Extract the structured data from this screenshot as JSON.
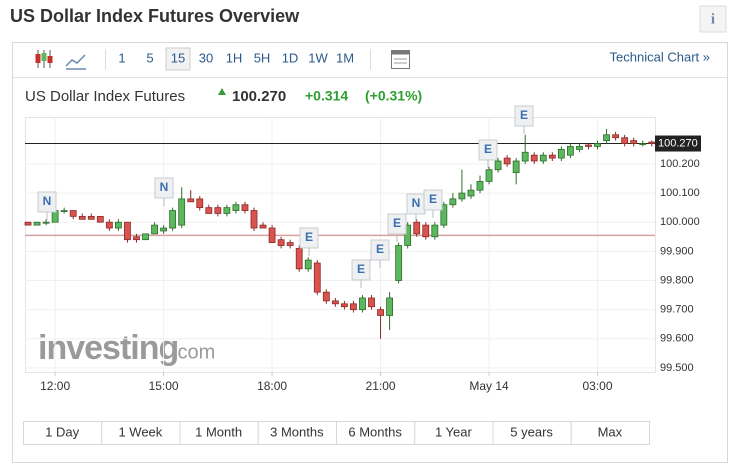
{
  "header": {
    "title": "US Dollar Index Futures Overview",
    "info": "i"
  },
  "toolbar": {
    "intervals": [
      "1",
      "5",
      "15",
      "30",
      "1H",
      "5H",
      "1D",
      "1W",
      "1M"
    ],
    "selected": "15",
    "link": "Technical Chart »"
  },
  "quote": {
    "name": "US Dollar Index Futures",
    "change": "+0.314",
    "change_percent": "(+0.31%)"
  },
  "watermark": {
    "brand": "investing",
    "suffix": ".com"
  },
  "ranges": [
    "1 Day",
    "1 Week",
    "1 Month",
    "3 Months",
    "6 Months",
    "1 Year",
    "5 years",
    "Max"
  ],
  "chart_data": {
    "type": "candlestick",
    "categories": [
      null,
      null,
      null,
      "12:00",
      null,
      null,
      null,
      null,
      null,
      null,
      null,
      null,
      null,
      null,
      null,
      "15:00",
      null,
      null,
      null,
      null,
      null,
      null,
      null,
      null,
      null,
      null,
      null,
      "18:00",
      null,
      null,
      null,
      null,
      null,
      null,
      null,
      null,
      null,
      null,
      null,
      "21:00",
      null,
      null,
      null,
      null,
      null,
      null,
      null,
      null,
      null,
      null,
      null,
      "May 14",
      null,
      null,
      null,
      null,
      null,
      null,
      null,
      null,
      null,
      null,
      null,
      "03:00",
      null,
      null,
      null,
      null,
      null,
      null
    ],
    "open": [
      100.0,
      99.99,
      100.0,
      100.0,
      100.04,
      100.04,
      100.02,
      100.02,
      100.02,
      100.0,
      99.98,
      100.0,
      99.95,
      99.94,
      99.96,
      99.97,
      99.98,
      99.99,
      100.08,
      100.08,
      100.05,
      100.05,
      100.03,
      100.04,
      100.06,
      100.04,
      99.99,
      99.98,
      99.94,
      99.93,
      99.91,
      99.84,
      99.86,
      99.76,
      99.73,
      99.72,
      99.72,
      99.7,
      99.74,
      99.7,
      99.68,
      99.8,
      99.92,
      100.0,
      99.99,
      99.95,
      99.99,
      100.06,
      100.08,
      100.09,
      100.11,
      100.14,
      100.18,
      100.22,
      100.17,
      100.21,
      100.23,
      100.21,
      100.23,
      100.22,
      100.23,
      100.25,
      100.265,
      100.26,
      100.28,
      100.3,
      100.29,
      100.28,
      100.27,
      100.275
    ],
    "high": [
      100.0,
      100.0,
      100.01,
      100.04,
      100.05,
      100.04,
      100.03,
      100.03,
      100.02,
      100.01,
      100.01,
      100.0,
      99.96,
      99.96,
      100.0,
      99.99,
      100.05,
      100.12,
      100.11,
      100.09,
      100.06,
      100.06,
      100.06,
      100.07,
      100.07,
      100.05,
      100.0,
      99.99,
      99.95,
      99.94,
      99.92,
      99.88,
      99.87,
      99.77,
      99.74,
      99.73,
      99.73,
      99.75,
      99.75,
      99.71,
      99.76,
      99.93,
      100.0,
      100.01,
      100.0,
      100.0,
      100.07,
      100.1,
      100.18,
      100.13,
      100.16,
      100.19,
      100.22,
      100.23,
      100.22,
      100.3,
      100.24,
      100.24,
      100.24,
      100.26,
      100.27,
      100.27,
      100.27,
      100.28,
      100.32,
      100.31,
      100.3,
      100.29,
      100.28,
      100.28
    ],
    "low": [
      99.99,
      99.99,
      99.99,
      100.0,
      100.03,
      100.01,
      100.01,
      100.01,
      100.0,
      99.97,
      99.97,
      99.93,
      99.93,
      99.94,
      99.96,
      99.96,
      99.97,
      99.98,
      100.07,
      100.04,
      100.03,
      100.02,
      100.02,
      100.03,
      100.03,
      99.97,
      99.98,
      99.93,
      99.91,
      99.91,
      99.83,
      99.83,
      99.75,
      99.72,
      99.71,
      99.7,
      99.69,
      99.69,
      99.7,
      99.6,
      99.63,
      99.79,
      99.91,
      99.95,
      99.94,
      99.94,
      99.98,
      100.05,
      100.07,
      100.08,
      100.1,
      100.13,
      100.17,
      100.19,
      100.13,
      100.2,
      100.2,
      100.2,
      100.21,
      100.21,
      100.22,
      100.24,
      100.25,
      100.25,
      100.27,
      100.28,
      100.26,
      100.26,
      100.26,
      100.26
    ],
    "close": [
      99.99,
      100.0,
      100.0,
      100.04,
      100.04,
      100.02,
      100.01,
      100.01,
      100.0,
      99.98,
      100.0,
      99.94,
      99.94,
      99.96,
      99.99,
      99.98,
      100.04,
      100.08,
      100.07,
      100.05,
      100.03,
      100.03,
      100.05,
      100.06,
      100.04,
      99.98,
      99.98,
      99.93,
      99.92,
      99.92,
      99.84,
      99.87,
      99.76,
      99.73,
      99.72,
      99.71,
      99.7,
      99.74,
      99.71,
      99.68,
      99.74,
      99.92,
      99.99,
      99.96,
      99.95,
      99.99,
      100.06,
      100.08,
      100.1,
      100.11,
      100.14,
      100.18,
      100.21,
      100.2,
      100.21,
      100.24,
      100.21,
      100.23,
      100.22,
      100.25,
      100.26,
      100.26,
      100.26,
      100.27,
      100.3,
      100.29,
      100.27,
      100.27,
      100.27,
      100.27
    ],
    "up_color": "#5cb85c",
    "down_color": "#d9534f",
    "last_price": {
      "value": 100.27,
      "label": "100.270"
    },
    "previous_close": 99.955,
    "events": [
      "N",
      "N",
      "E",
      "E",
      "E",
      "E",
      "N",
      "E",
      "E",
      "E"
    ],
    "ylim": [
      99.486,
      100.361
    ],
    "yticks": [
      {
        "value": 99.5,
        "label": "99.500"
      },
      {
        "value": 99.6,
        "label": "99.600"
      },
      {
        "value": 99.7,
        "label": "99.700"
      },
      {
        "value": 99.8,
        "label": "99.800"
      },
      {
        "value": 99.9,
        "label": "99.900"
      },
      {
        "value": 100.0,
        "label": "100.000"
      },
      {
        "value": 100.1,
        "label": "100.100"
      },
      {
        "value": 100.2,
        "label": "100.200"
      }
    ],
    "grid": true
  }
}
